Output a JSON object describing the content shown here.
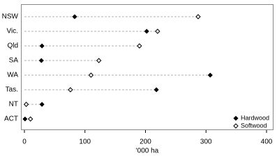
{
  "chart_data": {
    "type": "dot",
    "x_label": "'000 ha",
    "categories": [
      "NSW",
      "Vic.",
      "Qld",
      "SA",
      "WA",
      "Tas.",
      "NT",
      "ACT"
    ],
    "series": [
      {
        "name": "Hardwood",
        "color": "#000000",
        "marker": "filled-diamond",
        "values": [
          83,
          202,
          29,
          28,
          307,
          218,
          29,
          1
        ]
      },
      {
        "name": "Softwood",
        "color": "#000000",
        "marker": "open-diamond",
        "values": [
          287,
          220,
          190,
          123,
          110,
          76,
          3,
          10
        ]
      }
    ],
    "xlim": [
      0,
      400
    ],
    "xticks": [
      0,
      100,
      200,
      300,
      400
    ],
    "legend": "lower right"
  }
}
